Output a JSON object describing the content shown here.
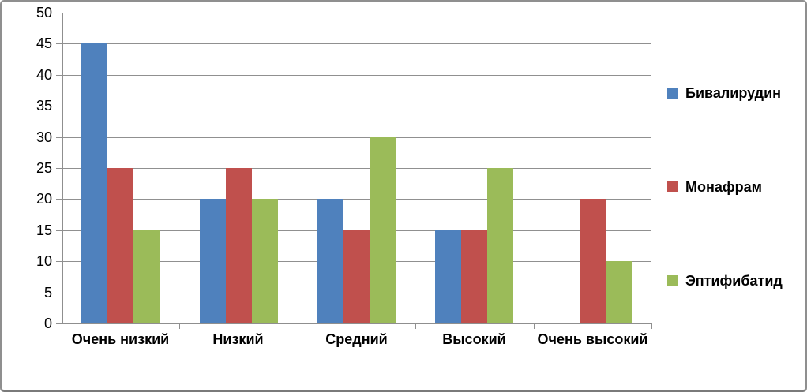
{
  "chart_data": {
    "type": "bar",
    "categories": [
      "Очень низкий",
      "Низкий",
      "Средний",
      "Высокий",
      "Очень высокий"
    ],
    "series": [
      {
        "name": "Бивалирудин",
        "color": "#4f81bd",
        "values": [
          45,
          20,
          20,
          15,
          0
        ]
      },
      {
        "name": "Монафрам",
        "color": "#c0504d",
        "values": [
          25,
          25,
          15,
          15,
          20
        ]
      },
      {
        "name": "Эптифибатид",
        "color": "#9bbb59",
        "values": [
          15,
          20,
          30,
          25,
          10
        ]
      }
    ],
    "ylim": [
      0,
      50
    ],
    "yticks": [
      0,
      5,
      10,
      15,
      20,
      25,
      30,
      35,
      40,
      45,
      50
    ],
    "grid": true,
    "legend_position": "right"
  },
  "colors": {
    "gridline": "#909090",
    "axis": "#8f8f8f",
    "frame_border": "#8f8f8f",
    "background": "#ffffff",
    "text": "#000000"
  }
}
